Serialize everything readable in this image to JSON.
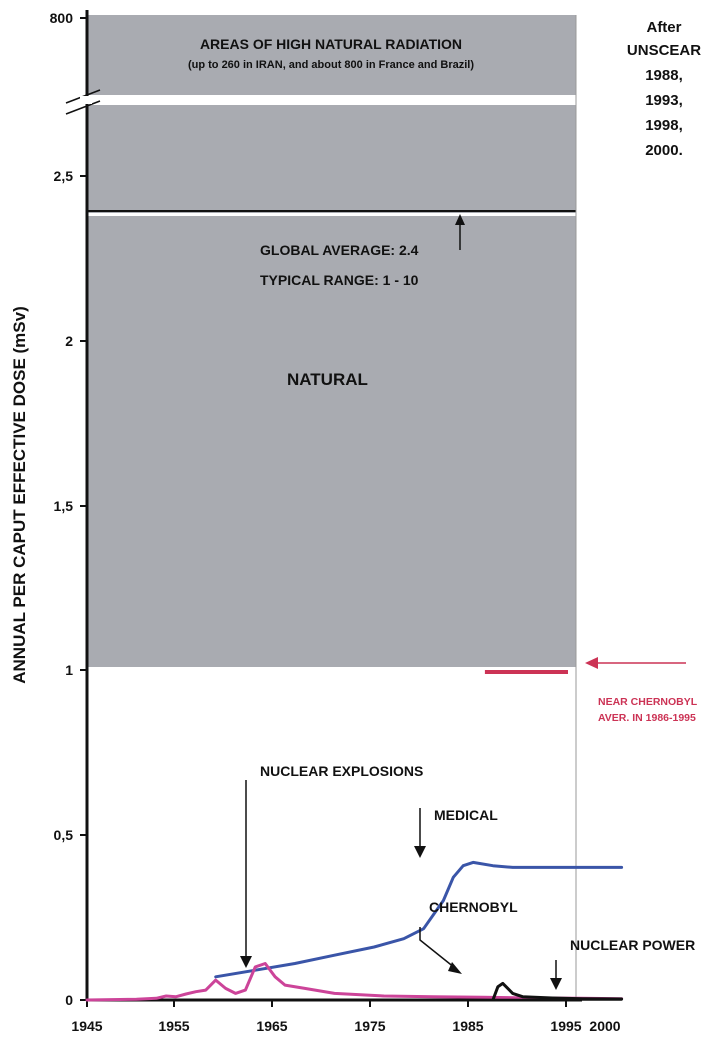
{
  "chart_data": {
    "type": "area",
    "title": "",
    "ylabel": "ANNUAL PER CAPUT EFFECTIVE DOSE (mSv)",
    "xlabel": "",
    "x_ticks": [
      "1945",
      "1955",
      "1965",
      "1975",
      "1985",
      "1995",
      "2000"
    ],
    "y_ticks": [
      "0",
      "0,5",
      "1",
      "1,5",
      "2",
      "2,5",
      "800"
    ],
    "xlim": [
      1945,
      2000
    ],
    "ylim": [
      0,
      2.5
    ],
    "axis_break": true,
    "source_note": [
      "After",
      "UNSCEAR",
      "1988,",
      "1993,",
      "1998,",
      "2000."
    ],
    "natural_band": {
      "label": "NATURAL",
      "from": 1.0,
      "global_average_label": "GLOBAL AVERAGE: 2.4",
      "typical_range_label": "TYPICAL RANGE: 1 - 10",
      "global_average": 2.4
    },
    "high_radiation_band": {
      "title": "AREAS OF HIGH NATURAL RADIATION",
      "subtitle": "(up to 260 in IRAN, and about 800 in France and Brazil)"
    },
    "chernobyl_near": {
      "label_line1": "NEAR CHERNOBYL",
      "label_line2": "AVER. IN 1986-1995",
      "value": 1.0,
      "x_range": [
        1986,
        1995
      ]
    },
    "series": [
      {
        "name": "MEDICAL",
        "color": "#3a55a8",
        "points": [
          [
            1958,
            0.07
          ],
          [
            1962,
            0.09
          ],
          [
            1966,
            0.11
          ],
          [
            1970,
            0.135
          ],
          [
            1974,
            0.16
          ],
          [
            1977,
            0.185
          ],
          [
            1979,
            0.215
          ],
          [
            1981,
            0.3
          ],
          [
            1982,
            0.37
          ],
          [
            1983,
            0.405
          ],
          [
            1984,
            0.415
          ],
          [
            1986,
            0.405
          ],
          [
            1988,
            0.4
          ],
          [
            1992,
            0.4
          ],
          [
            1996,
            0.4
          ],
          [
            1999,
            0.4
          ]
        ]
      },
      {
        "name": "NUCLEAR EXPLOSIONS",
        "color": "#cc4499",
        "points": [
          [
            1945,
            0.0
          ],
          [
            1950,
            0.002
          ],
          [
            1952,
            0.005
          ],
          [
            1953,
            0.012
          ],
          [
            1954,
            0.01
          ],
          [
            1955,
            0.018
          ],
          [
            1956,
            0.025
          ],
          [
            1957,
            0.03
          ],
          [
            1958,
            0.06
          ],
          [
            1959,
            0.035
          ],
          [
            1960,
            0.02
          ],
          [
            1961,
            0.03
          ],
          [
            1962,
            0.1
          ],
          [
            1963,
            0.11
          ],
          [
            1964,
            0.07
          ],
          [
            1965,
            0.045
          ],
          [
            1967,
            0.035
          ],
          [
            1970,
            0.02
          ],
          [
            1975,
            0.012
          ],
          [
            1980,
            0.01
          ],
          [
            1985,
            0.008
          ],
          [
            1990,
            0.006
          ],
          [
            1995,
            0.005
          ],
          [
            1999,
            0.004
          ]
        ]
      },
      {
        "name": "CHERNOBYL",
        "color": "#111111",
        "points": [
          [
            1986,
            0.0
          ],
          [
            1986.5,
            0.04
          ],
          [
            1987,
            0.05
          ],
          [
            1988,
            0.02
          ],
          [
            1989,
            0.01
          ],
          [
            1992,
            0.006
          ],
          [
            1995,
            0.004
          ],
          [
            1999,
            0.003
          ]
        ]
      },
      {
        "name": "NUCLEAR POWER",
        "color": "#111111",
        "points": [
          [
            1960,
            0.0
          ],
          [
            1999,
            0.001
          ]
        ]
      }
    ],
    "annotations": [
      {
        "text": "NUCLEAR EXPLOSIONS"
      },
      {
        "text": "MEDICAL"
      },
      {
        "text": "CHERNOBYL"
      },
      {
        "text": "NUCLEAR POWER"
      }
    ]
  }
}
